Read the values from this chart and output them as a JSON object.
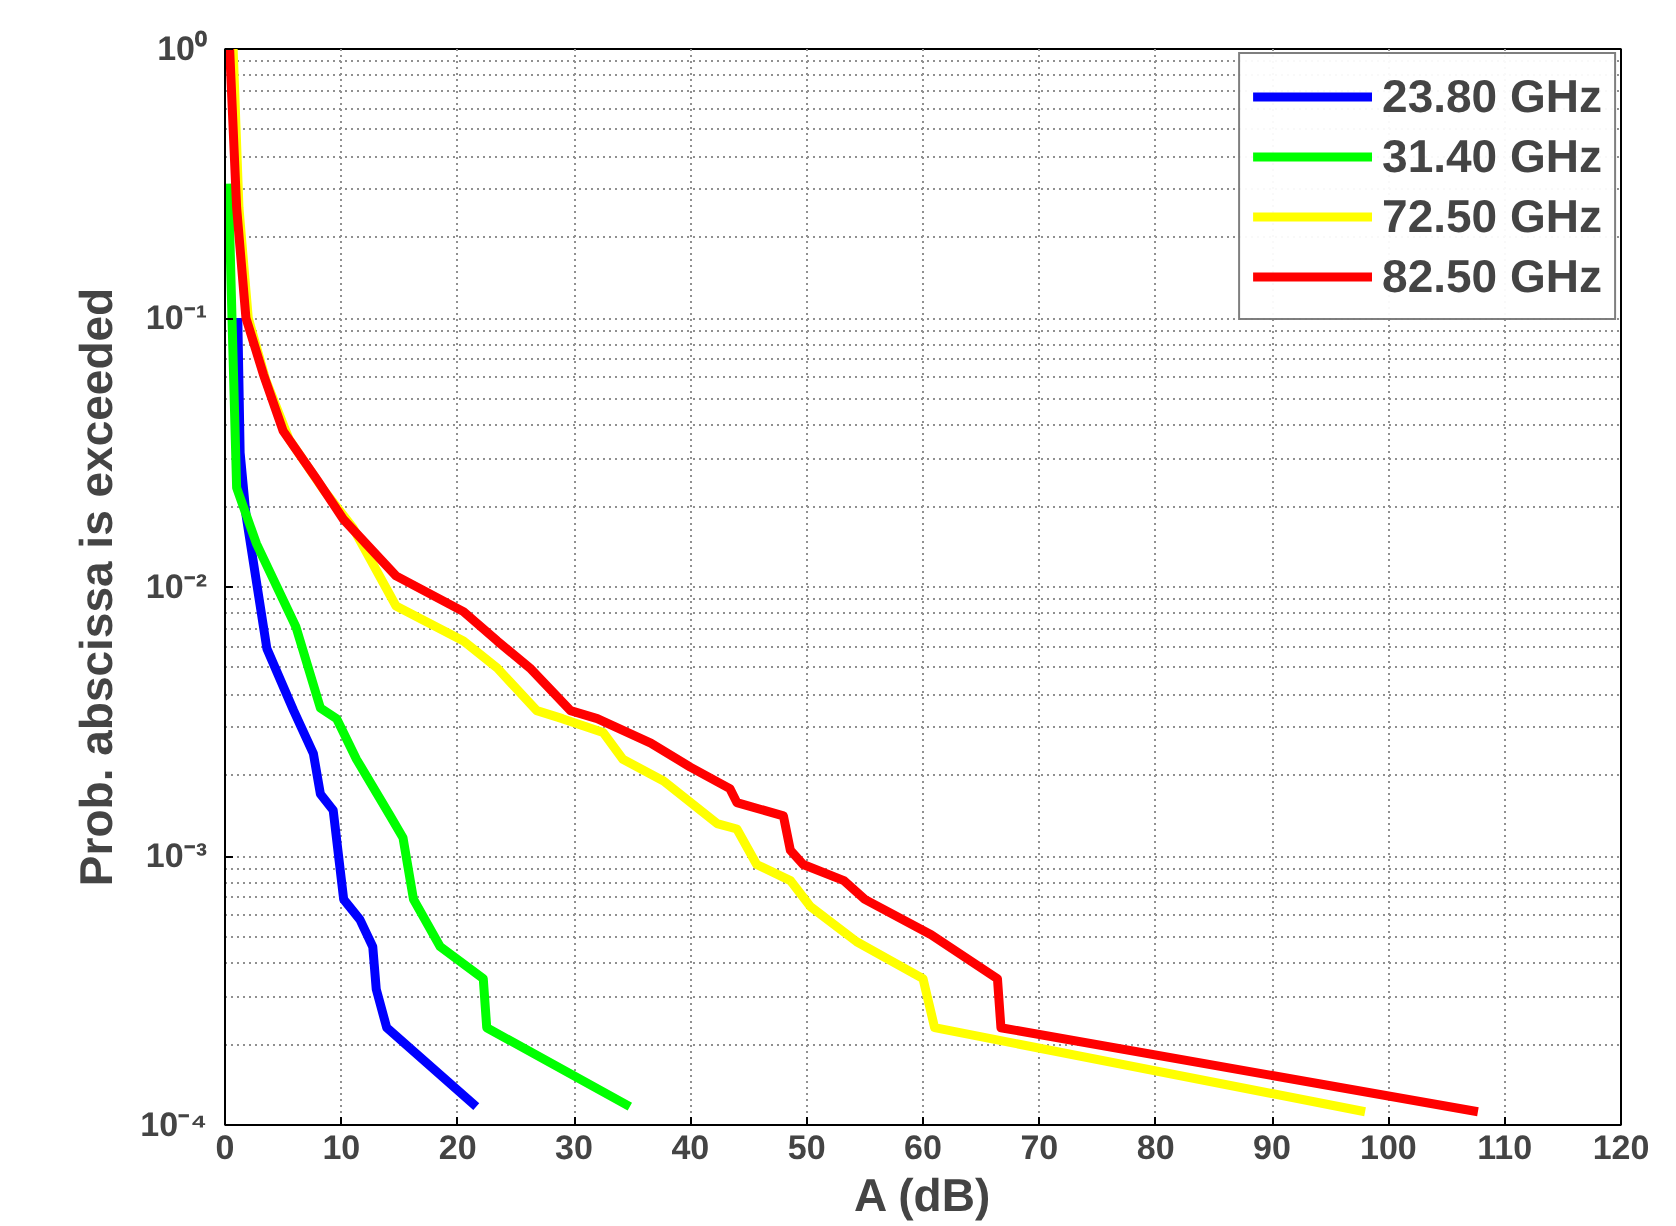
{
  "chart_data": {
    "type": "line",
    "xlabel": "A (dB)",
    "ylabel": "Prob. abscissa is exceeded",
    "log": "y",
    "grid": true,
    "legend": "top right",
    "line_style": "solid",
    "marker": "none",
    "xlim": [
      0,
      120
    ],
    "xticks": [
      0,
      10,
      20,
      30,
      40,
      50,
      60,
      70,
      80,
      90,
      100,
      110,
      120
    ],
    "ylim": [
      0.0001,
      1
    ],
    "yticks": [
      {
        "value": 0.0001,
        "label": "10⁻⁴"
      },
      {
        "value": 0.001,
        "label": "10⁻³"
      },
      {
        "value": 0.01,
        "label": "10⁻²"
      },
      {
        "value": 0.1,
        "label": "10⁻¹"
      },
      {
        "value": 1,
        "label": "10⁰"
      }
    ],
    "series": [
      {
        "name": "23.80 GHz",
        "color": "#0000ff",
        "x": [
          1.1,
          1.3,
          1.8,
          3.6,
          5.9,
          7.6,
          8.2,
          9.3,
          10.2,
          11.6,
          12.7,
          13.0,
          13.9,
          21.6
        ],
        "values": [
          0.1,
          0.0316,
          0.0186,
          0.0059,
          0.00347,
          0.0024,
          0.0017,
          0.00148,
          0.00069,
          0.00058,
          0.00046,
          0.00032,
          0.00023,
          0.000117
        ]
      },
      {
        "name": "31.40 GHz",
        "color": "#00ff00",
        "x": [
          0.3,
          0.6,
          1.0,
          2.7,
          6.1,
          8.2,
          9.6,
          11.3,
          14.2,
          15.3,
          16.2,
          17.0,
          18.5,
          22.2,
          22.5,
          34.8
        ],
        "values": [
          0.316,
          0.1,
          0.0234,
          0.0145,
          0.0071,
          0.00355,
          0.00324,
          0.00229,
          0.00141,
          0.00117,
          0.00069,
          0.0006,
          0.00046,
          0.00035,
          0.00023,
          0.000117
        ]
      },
      {
        "name": "72.50 GHz",
        "color": "#ffff00",
        "x": [
          0.7,
          1.2,
          2.0,
          3.5,
          5.5,
          8.5,
          11.0,
          14.7,
          20.5,
          23.4,
          26.8,
          29.0,
          32.5,
          34.2,
          37.7,
          42.3,
          44.0,
          45.7,
          48.6,
          50.3,
          54.3,
          60.0,
          61.0,
          98.0
        ],
        "values": [
          1,
          0.257,
          0.1,
          0.0589,
          0.0355,
          0.0229,
          0.0166,
          0.0085,
          0.0063,
          0.005,
          0.00347,
          0.00324,
          0.00288,
          0.00229,
          0.0019,
          0.00132,
          0.00126,
          0.00093,
          0.00081,
          0.00065,
          0.00048,
          0.00035,
          0.00023,
          0.000112
        ]
      },
      {
        "name": "82.50 GHz",
        "color": "#ff0000",
        "x": [
          0.4,
          1.0,
          1.8,
          3.3,
          5.0,
          7.9,
          10.2,
          14.7,
          20.5,
          23.4,
          26.2,
          29.7,
          32.0,
          36.6,
          40.0,
          43.4,
          44.0,
          48.0,
          48.6,
          49.7,
          53.2,
          55.0,
          60.7,
          66.4,
          66.7,
          107.7
        ],
        "values": [
          1,
          0.257,
          0.1,
          0.0617,
          0.038,
          0.0251,
          0.0178,
          0.011,
          0.0081,
          0.0063,
          0.005,
          0.00347,
          0.00324,
          0.00263,
          0.00214,
          0.00178,
          0.00158,
          0.00141,
          0.00105,
          0.00093,
          0.00081,
          0.00069,
          0.00051,
          0.00035,
          0.00023,
          0.000112
        ]
      }
    ]
  }
}
